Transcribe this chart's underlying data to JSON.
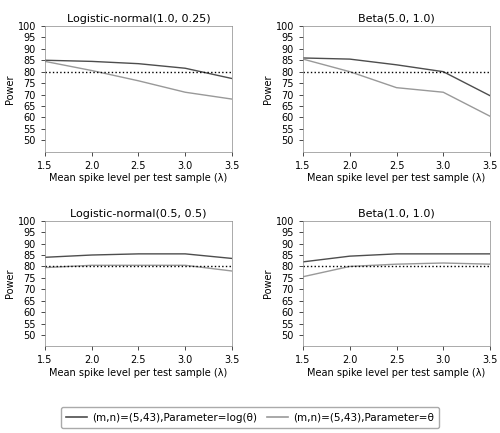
{
  "titles": [
    "Logistic-normal(1.0, 0.25)",
    "Beta(5.0, 1.0)",
    "Logistic-normal(0.5, 0.5)",
    "Beta(1.0, 1.0)"
  ],
  "xlabel": "Mean spike level per test sample (λ)",
  "ylabel": "Power",
  "xlim": [
    1.5,
    3.5
  ],
  "ylim": [
    45,
    100
  ],
  "yticks": [
    50,
    55,
    60,
    65,
    70,
    75,
    80,
    85,
    90,
    95,
    100
  ],
  "xticks": [
    1.5,
    2.0,
    2.5,
    3.0,
    3.5
  ],
  "hline": 80,
  "dark_color": "#4d4d4d",
  "light_color": "#999999",
  "lambda": [
    1.5,
    2.0,
    2.5,
    3.0,
    3.5
  ],
  "curves": {
    "logistic_normal_1_025": {
      "dark": [
        85.0,
        84.5,
        83.5,
        81.5,
        77.0
      ],
      "light": [
        84.5,
        80.5,
        76.0,
        71.0,
        68.0
      ]
    },
    "beta_5_1": {
      "dark": [
        86.0,
        85.5,
        83.0,
        80.0,
        69.5
      ],
      "light": [
        85.5,
        80.0,
        73.0,
        71.0,
        60.5
      ]
    },
    "logistic_normal_05_05": {
      "dark": [
        84.0,
        85.0,
        85.5,
        85.5,
        83.5
      ],
      "light": [
        79.5,
        80.5,
        80.5,
        80.5,
        78.0
      ]
    },
    "beta_1_1": {
      "dark": [
        82.0,
        84.5,
        85.5,
        85.5,
        85.5
      ],
      "light": [
        75.5,
        80.0,
        81.0,
        81.5,
        81.0
      ]
    }
  },
  "legend_labels": [
    "(m,n)=(5,43),Parameter=log(θ)",
    "(m,n)=(5,43),Parameter=θ"
  ],
  "legend_colors": [
    "#4d4d4d",
    "#999999"
  ],
  "title_fontsize": 8,
  "tick_fontsize": 7,
  "label_fontsize": 7,
  "legend_fontsize": 7.5
}
